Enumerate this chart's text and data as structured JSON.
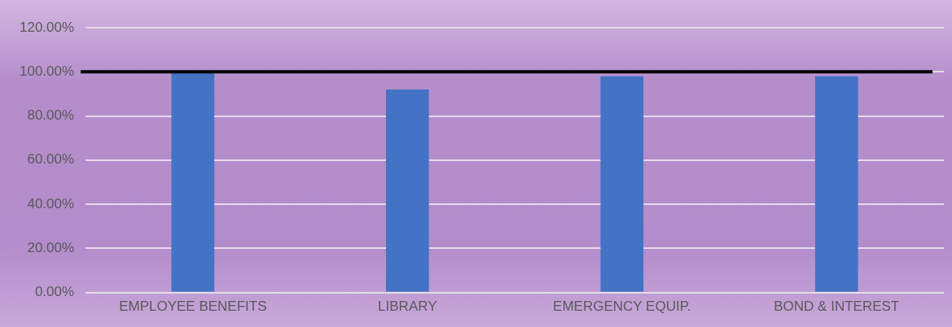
{
  "chart_data": {
    "type": "bar",
    "categories": [
      "EMPLOYEE BENEFITS",
      "LIBRARY",
      "EMERGENCY EQUIP.",
      "BOND & INTEREST"
    ],
    "values": [
      100,
      92,
      98,
      98
    ],
    "color": "#4472c4",
    "ylim": [
      0,
      120
    ],
    "yticks": [
      {
        "value": 0,
        "label": "0.00%"
      },
      {
        "value": 20,
        "label": "20.00%"
      },
      {
        "value": 40,
        "label": "40.00%"
      },
      {
        "value": 60,
        "label": "60.00%"
      },
      {
        "value": 80,
        "label": "80.00%"
      },
      {
        "value": 100,
        "label": "100.00%"
      },
      {
        "value": 120,
        "label": "120.00%"
      }
    ],
    "ref_lines": [
      {
        "axis": "y",
        "value": 100,
        "color": "#000000"
      }
    ],
    "grid": "y"
  }
}
